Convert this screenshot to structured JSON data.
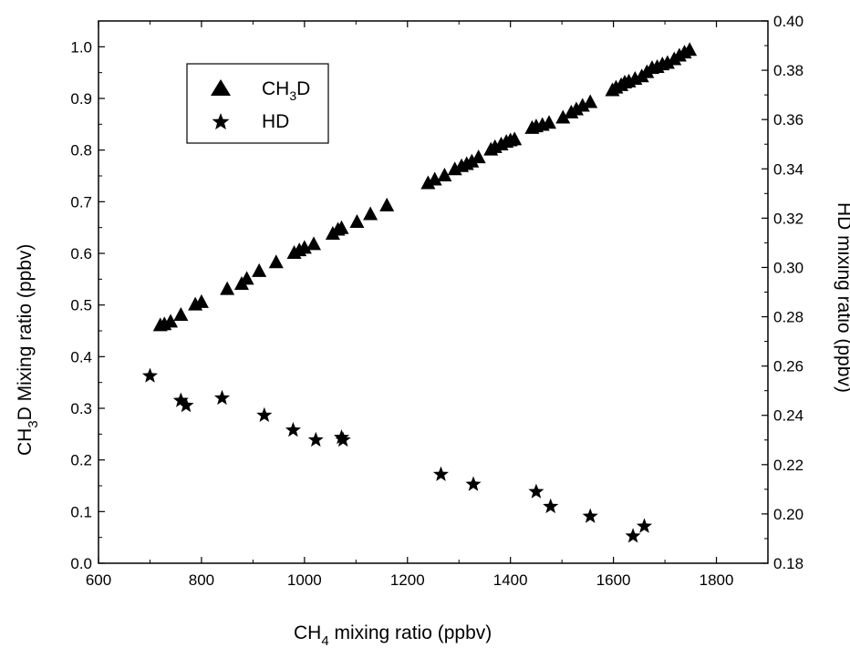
{
  "chart_data": {
    "type": "scatter",
    "xlabel": {
      "main": "CH",
      "sub": "4",
      "rest": " mixing ratio (ppbv)"
    },
    "ylabel_left": {
      "main": "CH",
      "sub": "3",
      "rest": "D Mixing ratio (ppbv)"
    },
    "ylabel_right": "HD mixing ratio (ppbv)",
    "xlim": [
      600,
      1900
    ],
    "ylim_left": [
      0.0,
      1.05
    ],
    "ylim_right": [
      0.18,
      0.4
    ],
    "x_ticks": [
      "600",
      "800",
      "1000",
      "1200",
      "1400",
      "1600",
      "1800"
    ],
    "y_left_ticks": [
      "0.0",
      "0.1",
      "0.2",
      "0.3",
      "0.4",
      "0.5",
      "0.6",
      "0.7",
      "0.8",
      "0.9",
      "1.0"
    ],
    "y_right_ticks": [
      "0.18",
      "0.20",
      "0.22",
      "0.24",
      "0.26",
      "0.28",
      "0.30",
      "0.32",
      "0.34",
      "0.36",
      "0.38",
      "0.40"
    ],
    "legend_position": "top-left",
    "series": [
      {
        "name": "CH3D",
        "legend": {
          "main": "CH",
          "sub": "3",
          "rest": "D"
        },
        "marker": "triangle",
        "axis": "left",
        "color": "#000000",
        "points": [
          [
            720,
            0.46
          ],
          [
            728,
            0.462
          ],
          [
            740,
            0.467
          ],
          [
            760,
            0.48
          ],
          [
            788,
            0.5
          ],
          [
            800,
            0.505
          ],
          [
            850,
            0.53
          ],
          [
            878,
            0.54
          ],
          [
            888,
            0.55
          ],
          [
            912,
            0.565
          ],
          [
            945,
            0.582
          ],
          [
            980,
            0.6
          ],
          [
            990,
            0.605
          ],
          [
            1000,
            0.61
          ],
          [
            1018,
            0.617
          ],
          [
            1055,
            0.637
          ],
          [
            1065,
            0.645
          ],
          [
            1072,
            0.648
          ],
          [
            1102,
            0.66
          ],
          [
            1128,
            0.675
          ],
          [
            1160,
            0.692
          ],
          [
            1240,
            0.735
          ],
          [
            1253,
            0.742
          ],
          [
            1272,
            0.75
          ],
          [
            1292,
            0.762
          ],
          [
            1305,
            0.768
          ],
          [
            1315,
            0.772
          ],
          [
            1325,
            0.777
          ],
          [
            1338,
            0.785
          ],
          [
            1362,
            0.8
          ],
          [
            1370,
            0.805
          ],
          [
            1382,
            0.81
          ],
          [
            1392,
            0.815
          ],
          [
            1400,
            0.818
          ],
          [
            1408,
            0.82
          ],
          [
            1442,
            0.842
          ],
          [
            1450,
            0.845
          ],
          [
            1462,
            0.848
          ],
          [
            1475,
            0.852
          ],
          [
            1502,
            0.862
          ],
          [
            1518,
            0.872
          ],
          [
            1528,
            0.878
          ],
          [
            1540,
            0.885
          ],
          [
            1555,
            0.892
          ],
          [
            1598,
            0.915
          ],
          [
            1605,
            0.92
          ],
          [
            1615,
            0.925
          ],
          [
            1622,
            0.93
          ],
          [
            1630,
            0.932
          ],
          [
            1642,
            0.937
          ],
          [
            1655,
            0.942
          ],
          [
            1665,
            0.95
          ],
          [
            1675,
            0.958
          ],
          [
            1685,
            0.96
          ],
          [
            1695,
            0.965
          ],
          [
            1705,
            0.968
          ],
          [
            1718,
            0.975
          ],
          [
            1728,
            0.982
          ],
          [
            1738,
            0.988
          ],
          [
            1748,
            0.993
          ]
        ]
      },
      {
        "name": "HD",
        "legend": {
          "main": "HD",
          "sub": "",
          "rest": ""
        },
        "marker": "star",
        "axis": "right",
        "color": "#000000",
        "points": [
          [
            700,
            0.256
          ],
          [
            760,
            0.246
          ],
          [
            770,
            0.244
          ],
          [
            840,
            0.247
          ],
          [
            922,
            0.24
          ],
          [
            978,
            0.234
          ],
          [
            1022,
            0.23
          ],
          [
            1072,
            0.231
          ],
          [
            1075,
            0.23
          ],
          [
            1265,
            0.216
          ],
          [
            1328,
            0.212
          ],
          [
            1450,
            0.209
          ],
          [
            1478,
            0.203
          ],
          [
            1555,
            0.199
          ],
          [
            1638,
            0.191
          ],
          [
            1660,
            0.195
          ]
        ]
      }
    ]
  }
}
